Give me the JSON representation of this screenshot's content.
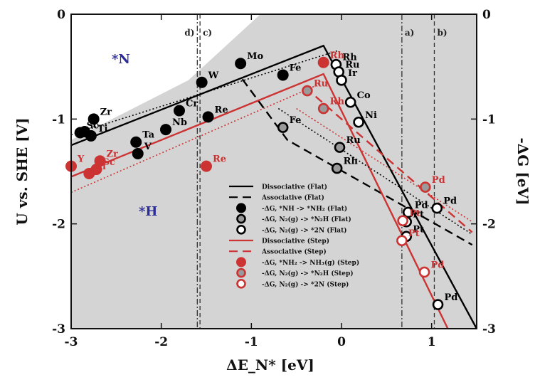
{
  "chart_data": {
    "type": "scatter",
    "xlabel": "ΔE_N* [eV]",
    "ylabel_left": "U vs. SHE [V]",
    "ylabel_right": "-ΔG [eV]",
    "xlim": [
      -3,
      1.5
    ],
    "ylim": [
      -3,
      0
    ],
    "xticks": [
      -3,
      -2,
      -1,
      0,
      1
    ],
    "yticks_left": [
      0,
      -1,
      -2,
      -3
    ],
    "yticks_right": [
      0,
      -1,
      -2,
      -3
    ],
    "region_labels": [
      "*N",
      "*H"
    ],
    "vertical_lines": [
      {
        "label": "d)",
        "x": -1.6,
        "style": "dashdot"
      },
      {
        "label": "c)",
        "x": -1.57,
        "style": "dash"
      },
      {
        "label": "a)",
        "x": 0.67,
        "style": "dashdot"
      },
      {
        "label": "b)",
        "x": 1.03,
        "style": "dash"
      }
    ],
    "lines": [
      {
        "series": "Dissociative (Flat)",
        "color": "#000000",
        "dash": "solid",
        "points": [
          [
            -3.0,
            -1.25
          ],
          [
            -0.2,
            -0.3
          ],
          [
            1.5,
            -3.0
          ]
        ]
      },
      {
        "series": "Associative (Flat)",
        "color": "#000000",
        "dash": "dashed",
        "points": [
          [
            -1.1,
            -0.62
          ],
          [
            -0.6,
            -1.2
          ],
          [
            1.45,
            -2.2
          ]
        ]
      },
      {
        "series": "Dissociative (Step)",
        "color": "#cc3333",
        "dash": "solid",
        "points": [
          [
            -3.0,
            -1.55
          ],
          [
            -0.2,
            -0.57
          ],
          [
            1.18,
            -3.0
          ]
        ]
      },
      {
        "series": "Associative (Step)",
        "color": "#cc3333",
        "dash": "dashed",
        "points": [
          [
            -0.4,
            -0.7
          ],
          [
            0.0,
            -1.0
          ],
          [
            1.45,
            -2.08
          ]
        ]
      },
      {
        "color": "#000000",
        "dash": "dotted",
        "points": [
          [
            -3.0,
            -1.15
          ],
          [
            -0.05,
            -0.35
          ]
        ]
      },
      {
        "color": "#000000",
        "dash": "dotted",
        "points": [
          [
            -0.7,
            -0.9
          ],
          [
            1.45,
            -2.1
          ]
        ]
      },
      {
        "color": "#cc3333",
        "dash": "dotted",
        "points": [
          [
            -3.0,
            -1.7
          ],
          [
            -0.2,
            -0.65
          ]
        ]
      },
      {
        "color": "#cc3333",
        "dash": "dotted",
        "points": [
          [
            -0.5,
            -0.9
          ],
          [
            1.45,
            -1.98
          ]
        ]
      }
    ],
    "series": [
      {
        "name": "-ΔG, *NH -> *NH₂ (Flat)",
        "marker": "filled",
        "color": "#000000",
        "points": [
          {
            "label": "Zr",
            "x": -2.75,
            "y": -1.0
          },
          {
            "label": "Sc",
            "x": -2.9,
            "y": -1.13
          },
          {
            "label": "Y",
            "x": -2.85,
            "y": -1.12
          },
          {
            "label": "Ti",
            "x": -2.78,
            "y": -1.16
          },
          {
            "label": "Ta",
            "x": -2.28,
            "y": -1.22
          },
          {
            "label": "V",
            "x": -2.26,
            "y": -1.33
          },
          {
            "label": "Nb",
            "x": -1.95,
            "y": -1.1
          },
          {
            "label": "Cr",
            "x": -1.8,
            "y": -0.92
          },
          {
            "label": "W",
            "x": -1.55,
            "y": -0.65
          },
          {
            "label": "Re",
            "x": -1.48,
            "y": -0.98
          },
          {
            "label": "Mo",
            "x": -1.12,
            "y": -0.47
          },
          {
            "label": "Fe",
            "x": -0.65,
            "y": -0.58
          }
        ]
      },
      {
        "name": "-ΔG, N₂(g) -> *N₂H (Flat)",
        "marker": "grey-ring",
        "color": "#000000",
        "points": [
          {
            "label": "Fe",
            "x": -0.65,
            "y": -1.08
          },
          {
            "label": "Ru",
            "x": -0.02,
            "y": -1.27
          },
          {
            "label": "Rh",
            "x": -0.05,
            "y": -1.47
          }
        ]
      },
      {
        "name": "-ΔG, N₂(g) -> *2N (Flat)",
        "marker": "open",
        "color": "#000000",
        "points": [
          {
            "label": "Rh",
            "x": -0.06,
            "y": -0.48
          },
          {
            "label": "Ru",
            "x": -0.03,
            "y": -0.55
          },
          {
            "label": "Ir",
            "x": 0.0,
            "y": -0.63
          },
          {
            "label": "Co",
            "x": 0.1,
            "y": -0.84
          },
          {
            "label": "Ni",
            "x": 0.19,
            "y": -1.03
          },
          {
            "label": "Pd",
            "x": 0.74,
            "y": -1.89
          },
          {
            "label": "Pt",
            "x": 0.72,
            "y": -1.98
          },
          {
            "label": "Pt",
            "x": 0.72,
            "y": -2.12
          },
          {
            "label": "Pd",
            "x": 1.06,
            "y": -1.85
          },
          {
            "label": "Pd",
            "x": 1.07,
            "y": -2.77
          }
        ]
      },
      {
        "name": "-ΔG, *NH₂ -> NH₃(g) (Step)",
        "marker": "filled",
        "color": "#cc3333",
        "points": [
          {
            "label": "Y",
            "x": -3.0,
            "y": -1.45
          },
          {
            "label": "Ti",
            "x": -2.8,
            "y": -1.52
          },
          {
            "label": "Sc",
            "x": -2.72,
            "y": -1.48
          },
          {
            "label": "Zr",
            "x": -2.68,
            "y": -1.4
          },
          {
            "label": "Re",
            "x": -1.5,
            "y": -1.45
          },
          {
            "label": "Rh",
            "x": -0.2,
            "y": -0.46
          }
        ]
      },
      {
        "name": "-ΔG, N₂(g) -> *N₂H (Step)",
        "marker": "grey-ring",
        "color": "#cc3333",
        "points": [
          {
            "label": "Ru",
            "x": -0.38,
            "y": -0.73
          },
          {
            "label": "Rh",
            "x": -0.2,
            "y": -0.9
          },
          {
            "label": "Pd",
            "x": 0.93,
            "y": -1.65
          }
        ]
      },
      {
        "name": "-ΔG, N₂(g) -> *2N (Step)",
        "marker": "open",
        "color": "#cc3333",
        "points": [
          {
            "label": "Pt",
            "x": 0.68,
            "y": -1.97
          },
          {
            "label": "Pt",
            "x": 0.67,
            "y": -2.16
          },
          {
            "label": "Pd",
            "x": 0.92,
            "y": -2.46
          }
        ]
      }
    ],
    "legend": {
      "placement": "bottom-center",
      "entries": [
        {
          "text": "Dissociative (Flat)",
          "kind": "line",
          "color": "#000000",
          "dash": "solid"
        },
        {
          "text": "Associative (Flat)",
          "kind": "line",
          "color": "#000000",
          "dash": "dashed"
        },
        {
          "text": "-ΔG, *NH -> *NH₂ (Flat)",
          "kind": "marker",
          "marker": "filled",
          "color": "#000000"
        },
        {
          "text": "-ΔG, N₂(g) -> *N₂H (Flat)",
          "kind": "marker",
          "marker": "grey-ring",
          "color": "#000000"
        },
        {
          "text": "-ΔG, N₂(g) -> *2N (Flat)",
          "kind": "marker",
          "marker": "open",
          "color": "#000000"
        },
        {
          "text": "Dissociative (Step)",
          "kind": "line",
          "color": "#cc3333",
          "dash": "solid"
        },
        {
          "text": "Associative (Step)",
          "kind": "line",
          "color": "#cc3333",
          "dash": "dashed"
        },
        {
          "text": "-ΔG, *NH₂ -> NH₃(g) (Step)",
          "kind": "marker",
          "marker": "filled",
          "color": "#cc3333"
        },
        {
          "text": "-ΔG, N₂(g) -> *N₂H (Step)",
          "kind": "marker",
          "marker": "grey-ring",
          "color": "#cc3333"
        },
        {
          "text": "-ΔG, N₂(g) -> *2N (Step)",
          "kind": "marker",
          "marker": "open",
          "color": "#cc3333"
        }
      ]
    },
    "colors": {
      "black_series": "#000000",
      "red_series": "#cc3333",
      "shading": "#d4d4d4",
      "region_label": "#2b2b9a"
    }
  }
}
